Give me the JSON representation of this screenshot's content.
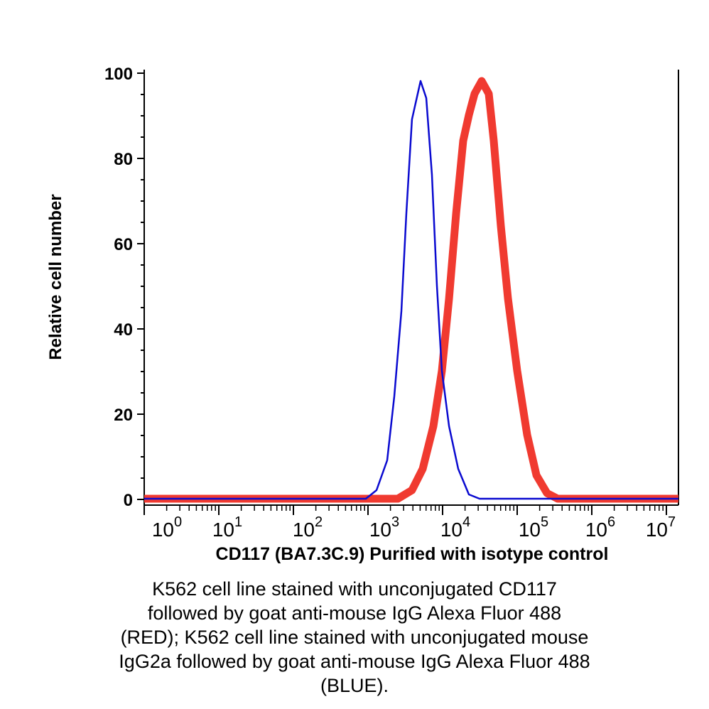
{
  "chart_data": {
    "type": "line",
    "title": "",
    "xlabel": "CD117 (BA7.3C.9) Purified with isotype control",
    "ylabel": "Relative cell number",
    "x_scale": "log",
    "xlim": [
      1,
      14500000
    ],
    "ylim": [
      0,
      100
    ],
    "grid": false,
    "y_ticks": [
      0,
      20,
      40,
      60,
      80,
      100
    ],
    "x_ticks": [
      {
        "base": "10",
        "exp": "0"
      },
      {
        "base": "10",
        "exp": "1"
      },
      {
        "base": "10",
        "exp": "2"
      },
      {
        "base": "10",
        "exp": "3"
      },
      {
        "base": "10",
        "exp": "4"
      },
      {
        "base": "10",
        "exp": "5"
      },
      {
        "base": "10",
        "exp": "6"
      },
      {
        "base": "10",
        "exp": "7"
      }
    ],
    "series": [
      {
        "color": "#0a0ad0",
        "x": [
          1,
          936,
          1301,
          1807,
          2250,
          2800,
          3270,
          3890,
          5070,
          6040,
          7200,
          8390,
          9780,
          12200,
          16200,
          22500,
          31300,
          14500000
        ],
        "y": [
          0,
          0,
          2,
          9,
          24,
          44,
          67,
          89,
          98,
          94,
          76,
          50,
          30,
          17,
          7,
          1,
          0,
          0
        ]
      },
      {
        "color": "#f03a30",
        "x": [
          1,
          2510,
          3890,
          5410,
          7520,
          9780,
          12200,
          15200,
          18900,
          22500,
          26800,
          33400,
          41600,
          48500,
          60400,
          75200,
          100000,
          136000,
          181000,
          251000,
          349000,
          14500000
        ],
        "y": [
          0,
          0,
          2,
          7,
          17,
          30,
          47,
          67,
          84,
          90,
          95,
          98,
          95,
          84,
          64,
          47,
          30,
          15,
          5.5,
          1.3,
          0,
          0
        ]
      }
    ]
  },
  "caption": [
    "K562 cell line stained with unconjugated CD117",
    "followed by goat anti-mouse IgG Alexa Fluor 488",
    "(RED); K562 cell line stained with unconjugated mouse",
    "IgG2a followed by goat anti-mouse IgG Alexa Fluor 488",
    "(BLUE)."
  ]
}
